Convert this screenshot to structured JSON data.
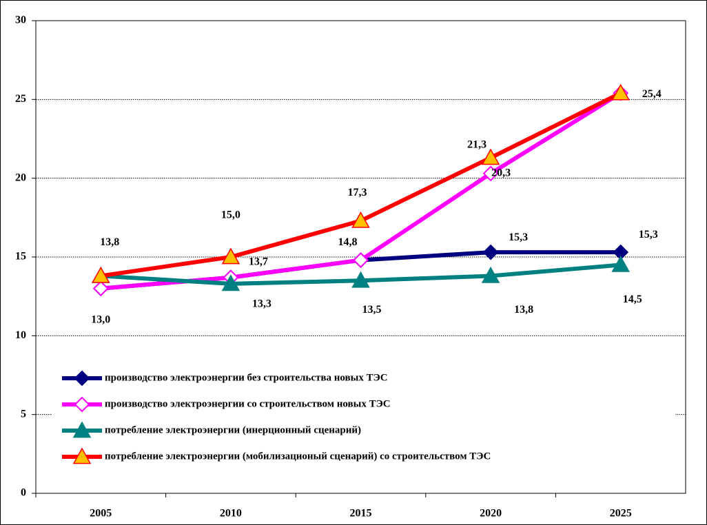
{
  "chart_data": {
    "type": "line",
    "categories": [
      "2005",
      "2010",
      "2015",
      "2020",
      "2025"
    ],
    "series": [
      {
        "name": "производство электроэнергии без строительства новых ТЭС",
        "color": "#000080",
        "marker": "diamond",
        "values": [
          13.0,
          13.7,
          14.8,
          15.3,
          15.3
        ],
        "value_labels": [
          null,
          null,
          null,
          "15,3",
          "15,3"
        ]
      },
      {
        "name": "производство электроэнергии со строительством новых ТЭС",
        "color": "#ff00ff",
        "marker": "diamond-open",
        "values": [
          13.0,
          13.7,
          14.8,
          20.3,
          25.4
        ],
        "value_labels": [
          "13,0",
          "13,7",
          "14,8",
          "20,3",
          "25,4"
        ]
      },
      {
        "name": "потребление электроэнергии (инерционный сценарий)",
        "color": "#008080",
        "marker": "triangle",
        "values": [
          13.8,
          13.3,
          13.5,
          13.8,
          14.5
        ],
        "value_labels": [
          null,
          "13,3",
          "13,5",
          "13,8",
          "14,5"
        ]
      },
      {
        "name": "потребление электроэнергии (мобилизационый сценарий) со строительством ТЭС",
        "color": "#ff0000",
        "marker": "triangle-filled",
        "marker_fill": "#ffc000",
        "values": [
          13.8,
          15.0,
          17.3,
          21.3,
          25.4
        ],
        "value_labels": [
          "13,8",
          "15,0",
          "17,3",
          "21,3",
          null
        ]
      }
    ],
    "ylim": [
      0,
      30
    ],
    "yticks": [
      0,
      5,
      10,
      15,
      20,
      25,
      30
    ],
    "grid": true
  }
}
